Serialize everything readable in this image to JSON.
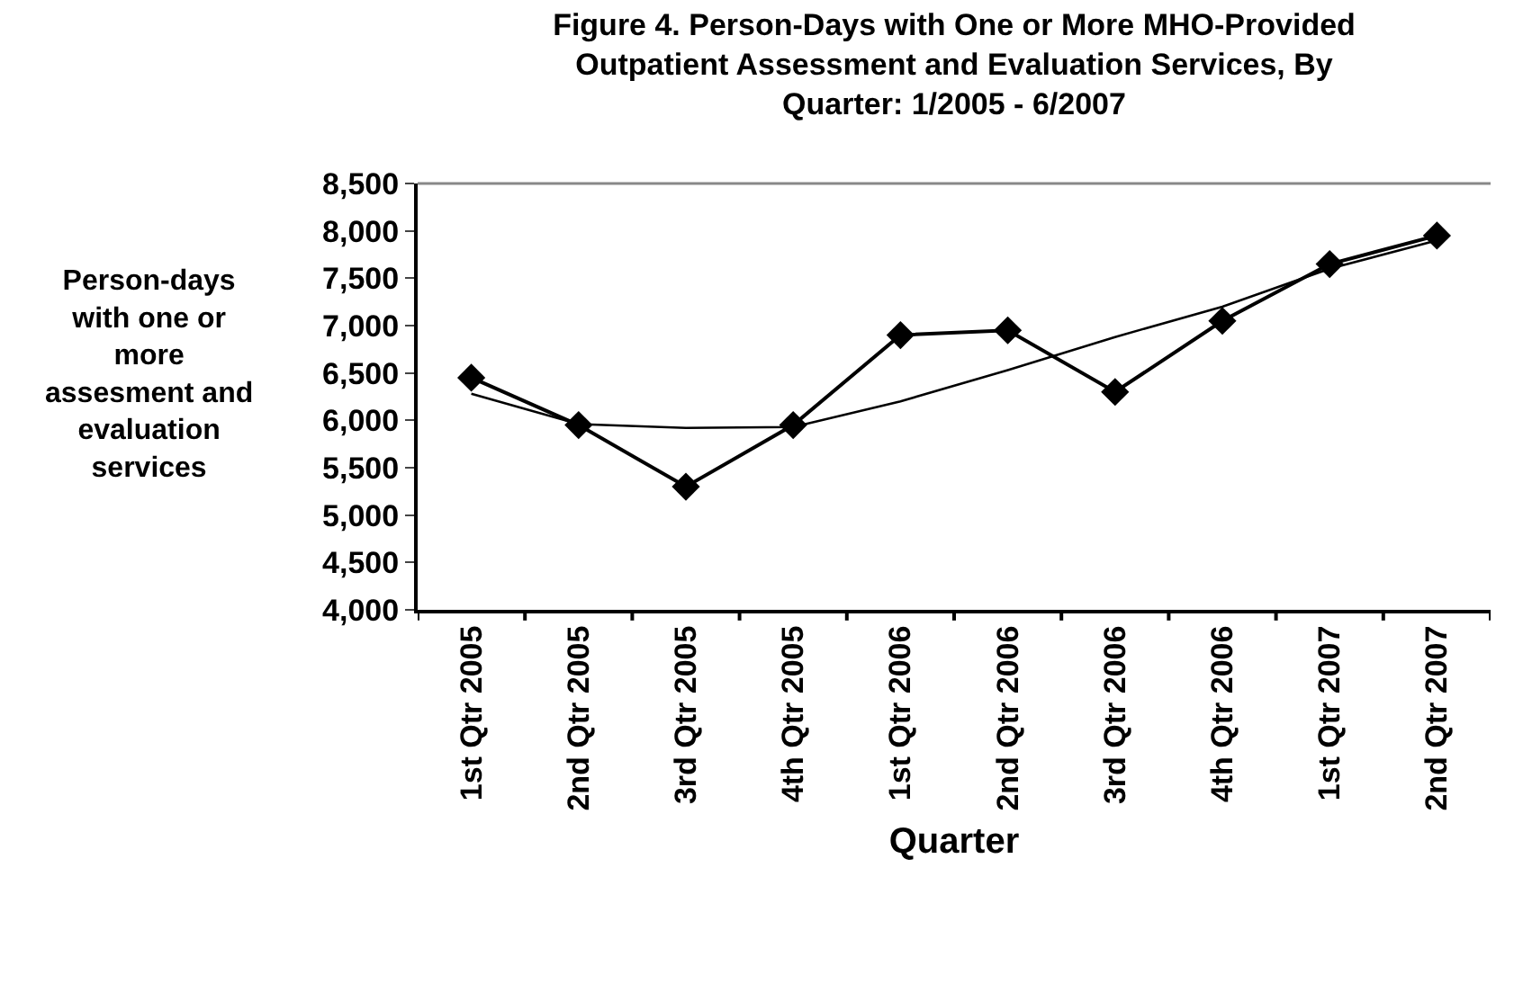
{
  "chart_data": {
    "type": "line",
    "title": "Figure 4. Person-Days with One or More MHO-Provided Outpatient Assessment and Evaluation Services, By Quarter: 1/2005 - 6/2007",
    "xlabel": "Quarter",
    "ylabel": "Person-days with one or more assesment and evaluation services",
    "categories": [
      "1st Qtr 2005",
      "2nd Qtr 2005",
      "3rd Qtr 2005",
      "4th Qtr 2005",
      "1st Qtr 2006",
      "2nd Qtr 2006",
      "3rd Qtr 2006",
      "4th Qtr 2006",
      "1st Qtr 2007",
      "2nd Qtr 2007"
    ],
    "series": [
      {
        "color": "#000000",
        "marker": "diamond",
        "values": [
          6450,
          5950,
          5300,
          5950,
          6900,
          6950,
          6300,
          7050,
          7650,
          7950
        ]
      },
      {
        "color": "#000000",
        "marker": "none",
        "values": [
          6280,
          5960,
          5920,
          5930,
          6200,
          6530,
          6880,
          7200,
          7600,
          7900
        ]
      }
    ],
    "ylim": [
      4000,
      8500
    ],
    "yticks": [
      {
        "value": 4000,
        "label": "4,000"
      },
      {
        "value": 4500,
        "label": "4,500"
      },
      {
        "value": 5000,
        "label": "5,000"
      },
      {
        "value": 5500,
        "label": "5,500"
      },
      {
        "value": 6000,
        "label": "6,000"
      },
      {
        "value": 6500,
        "label": "6,500"
      },
      {
        "value": 7000,
        "label": "7,000"
      },
      {
        "value": 7500,
        "label": "7,500"
      },
      {
        "value": 8000,
        "label": "8,000"
      },
      {
        "value": 8500,
        "label": "8,500"
      }
    ],
    "grid": false
  }
}
